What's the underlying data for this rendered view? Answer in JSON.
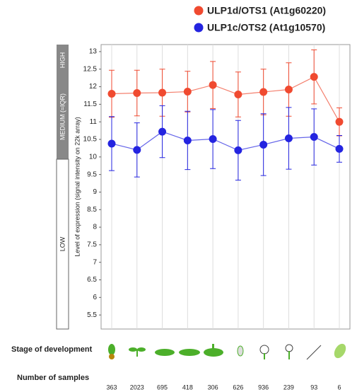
{
  "chart_data": {
    "type": "line",
    "y_label": "Level of expression (signal intensity on 22k array)",
    "band_labels": [
      "HIGH",
      "MEDIUM (≈IQR)",
      "LOW"
    ],
    "stage_label": "Stage of development",
    "samples_label": "Number of samples",
    "categories": [
      "363",
      "2023",
      "695",
      "418",
      "306",
      "626",
      "936",
      "239",
      "93",
      "6"
    ],
    "series": [
      {
        "name": "ULP1d/OTS1 (At1g60220)",
        "color": "#f04a30",
        "values": [
          11.8,
          11.82,
          11.83,
          11.86,
          12.05,
          11.78,
          11.85,
          11.92,
          12.28,
          11.0
        ],
        "errors": [
          0.67,
          0.65,
          0.67,
          0.58,
          0.67,
          0.64,
          0.65,
          0.76,
          0.77,
          0.4
        ]
      },
      {
        "name": "ULP1c/OTS2 (At1g10570)",
        "color": "#2424e0",
        "values": [
          10.38,
          10.2,
          10.72,
          10.47,
          10.51,
          10.19,
          10.35,
          10.53,
          10.57,
          10.23
        ],
        "errors": [
          0.77,
          0.77,
          0.74,
          0.83,
          0.84,
          0.85,
          0.88,
          0.88,
          0.8,
          0.38
        ]
      }
    ],
    "ylim": [
      5.1,
      13.2
    ],
    "yticks": [
      5.5,
      6,
      6.5,
      7,
      7.5,
      8,
      8.5,
      9,
      9.5,
      10,
      10.5,
      11,
      11.5,
      12,
      12.5,
      13
    ],
    "grid": true
  }
}
